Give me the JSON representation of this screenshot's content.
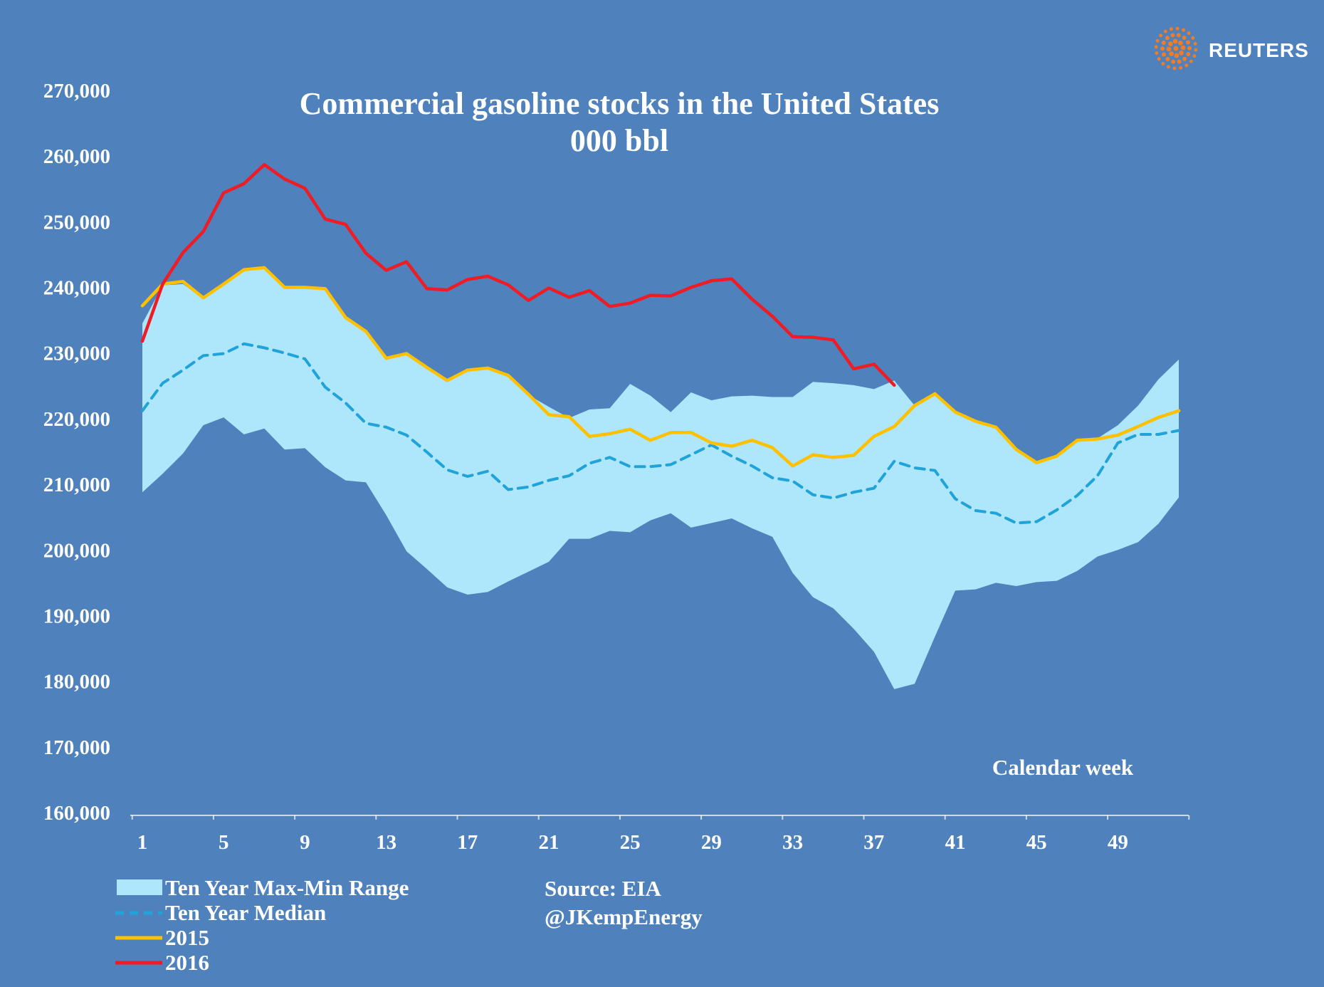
{
  "brand": {
    "name": "REUTERS",
    "logo_icon": "reuters-logo-icon",
    "logo_color": "#f07c24"
  },
  "chart_data": {
    "type": "line",
    "title": "Commercial gasoline stocks in the United States",
    "subtitle": "000 bbl",
    "xlabel": "Calendar week",
    "ylabel": "",
    "xlim": [
      1,
      52
    ],
    "ylim": [
      160000,
      270000
    ],
    "x_ticks": [
      "1",
      "5",
      "9",
      "13",
      "17",
      "21",
      "25",
      "29",
      "33",
      "37",
      "41",
      "45",
      "49"
    ],
    "y_ticks": [
      "160,000",
      "170,000",
      "180,000",
      "190,000",
      "200,000",
      "210,000",
      "220,000",
      "230,000",
      "240,000",
      "250,000",
      "260,000",
      "270,000"
    ],
    "grid": false,
    "legend_position": "bottom-left",
    "weeks": [
      1,
      2,
      3,
      4,
      5,
      6,
      7,
      8,
      9,
      10,
      11,
      12,
      13,
      14,
      15,
      16,
      17,
      18,
      19,
      20,
      21,
      22,
      23,
      24,
      25,
      26,
      27,
      28,
      29,
      30,
      31,
      32,
      33,
      34,
      35,
      36,
      37,
      38,
      39,
      40,
      41,
      42,
      43,
      44,
      45,
      46,
      47,
      48,
      49,
      50,
      51,
      52
    ],
    "range": {
      "name": "Ten Year Max-Min Range",
      "max": [
        234500,
        240300,
        240500,
        238300,
        240500,
        242500,
        243000,
        240000,
        239800,
        239800,
        235400,
        233300,
        229200,
        229800,
        227700,
        225800,
        227400,
        227700,
        226600,
        223600,
        221800,
        220100,
        221400,
        221600,
        225300,
        223500,
        221000,
        224000,
        222800,
        223400,
        223500,
        223300,
        223300,
        225600,
        225400,
        225100,
        224500,
        225800,
        222000,
        223800,
        221000,
        219500,
        218500,
        215300,
        213500,
        214300,
        216800,
        217000,
        219000,
        222000,
        226000,
        229000
      ],
      "min": [
        208800,
        211600,
        214700,
        219000,
        220200,
        217600,
        218500,
        215300,
        215500,
        212600,
        210600,
        210300,
        205300,
        199800,
        197100,
        194300,
        193200,
        193600,
        195200,
        196700,
        198200,
        201700,
        201700,
        202900,
        202700,
        204500,
        205600,
        203400,
        204100,
        204800,
        203300,
        202000,
        196500,
        192800,
        191100,
        188000,
        184500,
        178800,
        179600,
        186800,
        193800,
        194000,
        195000,
        194500,
        195100,
        195300,
        196800,
        199000,
        200000,
        201200,
        204000,
        208000
      ],
      "color": "#aee6fb"
    },
    "series": [
      {
        "name": "Ten Year Median",
        "color": "#1fa3d8",
        "dash": true,
        "values": [
          221200,
          225400,
          227400,
          229600,
          229900,
          231400,
          230800,
          230000,
          229100,
          224800,
          222400,
          219300,
          218700,
          217500,
          214900,
          212200,
          211200,
          212000,
          209200,
          209600,
          210600,
          211300,
          213200,
          214100,
          212700,
          212700,
          213000,
          214500,
          216000,
          214300,
          212800,
          211000,
          210500,
          208400,
          207900,
          208800,
          209400,
          213500,
          212500,
          212100,
          207800,
          206000,
          205600,
          204100,
          204300,
          206100,
          208300,
          211300,
          216300,
          217600,
          217600,
          218200
        ]
      },
      {
        "name": "2015",
        "color": "#ffc000",
        "dash": false,
        "values": [
          237200,
          240500,
          240900,
          238400,
          240500,
          242700,
          243000,
          240000,
          240000,
          239800,
          235400,
          233300,
          229200,
          229900,
          227800,
          225800,
          227400,
          227700,
          226600,
          223700,
          220600,
          220300,
          217300,
          217700,
          218400,
          216700,
          217900,
          217900,
          216300,
          215800,
          216700,
          215600,
          212800,
          214500,
          214100,
          214400,
          217300,
          218800,
          222000,
          223800,
          221000,
          219600,
          218700,
          215300,
          213300,
          214300,
          216700,
          216900,
          217500,
          218800,
          220200,
          221200
        ]
      },
      {
        "name": "2016",
        "color": "#ee1c25",
        "dash": false,
        "values": [
          231800,
          240500,
          245300,
          248500,
          254400,
          255800,
          258700,
          256500,
          255100,
          250400,
          249600,
          245200,
          242600,
          243900,
          239800,
          239600,
          241200,
          241700,
          240400,
          238000,
          239900,
          238500,
          239500,
          237100,
          237600,
          238800,
          238700,
          240000,
          241000,
          241300,
          238200,
          235600,
          232500,
          232400,
          232000,
          227600,
          228300,
          225100
        ]
      }
    ],
    "annotations": [
      "Source: EIA",
      "@JKempEnergy"
    ]
  }
}
